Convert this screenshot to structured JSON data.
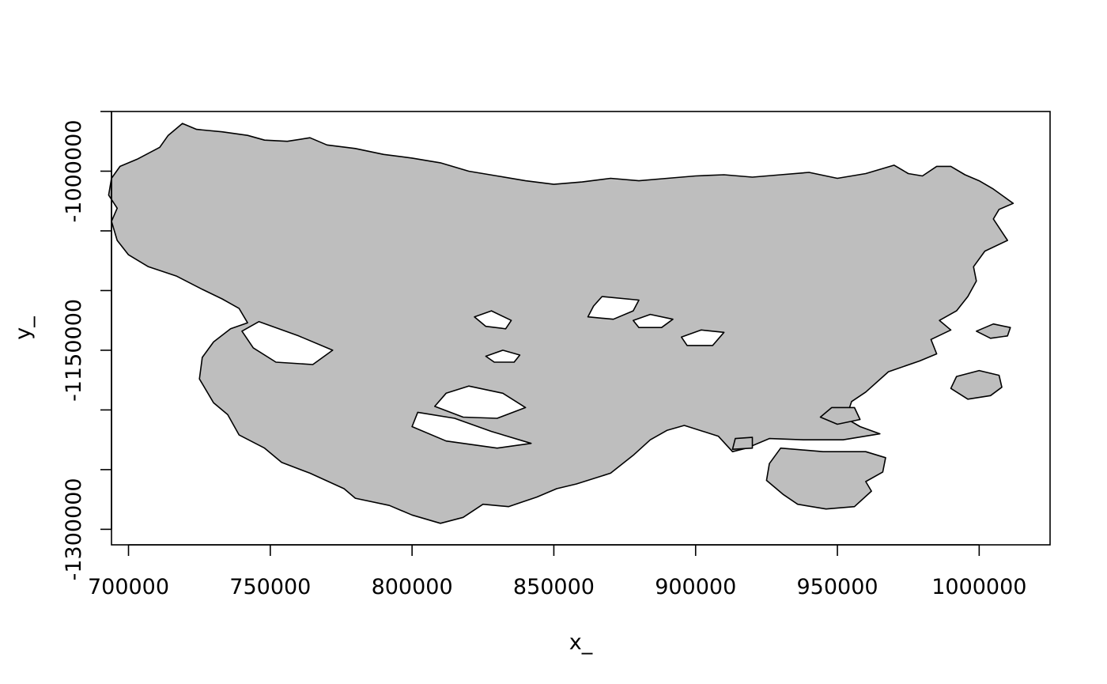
{
  "chart_data": {
    "type": "map",
    "title": "",
    "xlabel": "x_",
    "ylabel": "y_",
    "xlim": [
      694000,
      1025000
    ],
    "ylim": [
      -1313000,
      -950000
    ],
    "x_ticks": [
      {
        "value": 700000,
        "label": "700000"
      },
      {
        "value": 750000,
        "label": "750000"
      },
      {
        "value": 800000,
        "label": "800000"
      },
      {
        "value": 850000,
        "label": "850000"
      },
      {
        "value": 900000,
        "label": "900000"
      },
      {
        "value": 950000,
        "label": "950000"
      },
      {
        "value": 1000000,
        "label": "1000000"
      }
    ],
    "y_ticks": [
      {
        "value": -950000,
        "label": ""
      },
      {
        "value": -1000000,
        "label": "-1000000"
      },
      {
        "value": -1050000,
        "label": ""
      },
      {
        "value": -1100000,
        "label": ""
      },
      {
        "value": -1150000,
        "label": "-1150000"
      },
      {
        "value": -1200000,
        "label": ""
      },
      {
        "value": -1250000,
        "label": ""
      },
      {
        "value": -1300000,
        "label": "-1300000"
      }
    ],
    "fill_color": "#bebebe",
    "lake_color": "#ffffff",
    "border_color": "#000000",
    "polygons": [
      {
        "role": "mainland",
        "coords": [
          [
            719000,
            -960000
          ],
          [
            724000,
            -965000
          ],
          [
            733000,
            -967000
          ],
          [
            742000,
            -970000
          ],
          [
            748000,
            -974000
          ],
          [
            756000,
            -975000
          ],
          [
            764000,
            -972000
          ],
          [
            770000,
            -978000
          ],
          [
            780000,
            -981000
          ],
          [
            790000,
            -986000
          ],
          [
            800000,
            -989000
          ],
          [
            810000,
            -993000
          ],
          [
            820000,
            -1000000
          ],
          [
            830000,
            -1004000
          ],
          [
            840000,
            -1008000
          ],
          [
            850000,
            -1011000
          ],
          [
            860000,
            -1009000
          ],
          [
            870000,
            -1006000
          ],
          [
            880000,
            -1008000
          ],
          [
            890000,
            -1006000
          ],
          [
            900000,
            -1004000
          ],
          [
            910000,
            -1003000
          ],
          [
            920000,
            -1005000
          ],
          [
            930000,
            -1003000
          ],
          [
            940000,
            -1001000
          ],
          [
            950000,
            -1006000
          ],
          [
            960000,
            -1002000
          ],
          [
            970000,
            -995000
          ],
          [
            975000,
            -1002000
          ],
          [
            980000,
            -1004000
          ],
          [
            985000,
            -996000
          ],
          [
            990000,
            -996000
          ],
          [
            995000,
            -1003000
          ],
          [
            1000000,
            -1008000
          ],
          [
            1005000,
            -1015000
          ],
          [
            1012000,
            -1027000
          ],
          [
            1007000,
            -1032000
          ],
          [
            1005000,
            -1040000
          ],
          [
            1010000,
            -1058000
          ],
          [
            1002000,
            -1067000
          ],
          [
            998000,
            -1080000
          ],
          [
            999000,
            -1092000
          ],
          [
            996000,
            -1105000
          ],
          [
            992000,
            -1117000
          ],
          [
            986000,
            -1125000
          ],
          [
            990000,
            -1133000
          ],
          [
            983000,
            -1141000
          ],
          [
            985000,
            -1153000
          ],
          [
            979000,
            -1159000
          ],
          [
            968000,
            -1168000
          ],
          [
            960000,
            -1185000
          ],
          [
            955000,
            -1193000
          ],
          [
            953000,
            -1207000
          ],
          [
            958000,
            -1214000
          ],
          [
            965000,
            -1220000
          ],
          [
            952000,
            -1225000
          ],
          [
            938000,
            -1225000
          ],
          [
            926000,
            -1224000
          ],
          [
            918000,
            -1232000
          ],
          [
            913000,
            -1235000
          ],
          [
            908000,
            -1222000
          ],
          [
            896000,
            -1213000
          ],
          [
            890000,
            -1217000
          ],
          [
            884000,
            -1225000
          ],
          [
            878000,
            -1238000
          ],
          [
            870000,
            -1253000
          ],
          [
            858000,
            -1262000
          ],
          [
            851000,
            -1266000
          ],
          [
            844000,
            -1273000
          ],
          [
            834000,
            -1281000
          ],
          [
            825000,
            -1279000
          ],
          [
            818000,
            -1290000
          ],
          [
            810000,
            -1295000
          ],
          [
            800000,
            -1288000
          ],
          [
            792000,
            -1280000
          ],
          [
            780000,
            -1274000
          ],
          [
            776000,
            -1266000
          ],
          [
            764000,
            -1253000
          ],
          [
            754000,
            -1244000
          ],
          [
            748000,
            -1232000
          ],
          [
            739000,
            -1221000
          ],
          [
            735000,
            -1204000
          ],
          [
            730000,
            -1194000
          ],
          [
            725000,
            -1174000
          ],
          [
            726000,
            -1156000
          ],
          [
            730000,
            -1143000
          ],
          [
            736000,
            -1132000
          ],
          [
            742000,
            -1127000
          ],
          [
            739000,
            -1115000
          ],
          [
            733000,
            -1107000
          ],
          [
            726000,
            -1099000
          ],
          [
            717000,
            -1088000
          ],
          [
            707000,
            -1080000
          ],
          [
            700000,
            -1070000
          ],
          [
            696000,
            -1058000
          ],
          [
            694000,
            -1042000
          ],
          [
            696000,
            -1031000
          ],
          [
            693000,
            -1020000
          ],
          [
            694000,
            -1006000
          ],
          [
            697000,
            -996000
          ],
          [
            703000,
            -990000
          ],
          [
            711000,
            -980000
          ],
          [
            714000,
            -970000
          ]
        ]
      },
      {
        "role": "island",
        "coords": [
          [
            1000000,
            -1167000
          ],
          [
            1007000,
            -1171000
          ],
          [
            1008000,
            -1181000
          ],
          [
            1004000,
            -1188000
          ],
          [
            996000,
            -1191000
          ],
          [
            990000,
            -1182000
          ],
          [
            992000,
            -1172000
          ]
        ]
      },
      {
        "role": "island",
        "coords": [
          [
            1005000,
            -1128000
          ],
          [
            1011000,
            -1131000
          ],
          [
            1010000,
            -1138000
          ],
          [
            1004000,
            -1140000
          ],
          [
            999000,
            -1134000
          ]
        ]
      },
      {
        "role": "peninsula",
        "coords": [
          [
            930000,
            -1232000
          ],
          [
            945000,
            -1235000
          ],
          [
            960000,
            -1235000
          ],
          [
            967000,
            -1240000
          ],
          [
            966000,
            -1252000
          ],
          [
            960000,
            -1260000
          ],
          [
            962000,
            -1268000
          ],
          [
            956000,
            -1281000
          ],
          [
            946000,
            -1283000
          ],
          [
            936000,
            -1279000
          ],
          [
            931000,
            -1271000
          ],
          [
            925000,
            -1259000
          ],
          [
            926000,
            -1245000
          ]
        ]
      },
      {
        "role": "islet",
        "coords": [
          [
            948000,
            -1198000
          ],
          [
            956000,
            -1198000
          ],
          [
            958000,
            -1208000
          ],
          [
            950000,
            -1212000
          ],
          [
            944000,
            -1206000
          ]
        ]
      },
      {
        "role": "islet",
        "coords": [
          [
            914000,
            -1224000
          ],
          [
            920000,
            -1223000
          ],
          [
            920000,
            -1232000
          ],
          [
            913000,
            -1233000
          ]
        ]
      }
    ],
    "holes": [
      [
        [
          746000,
          -1126000
        ],
        [
          760000,
          -1138000
        ],
        [
          772000,
          -1150000
        ],
        [
          765000,
          -1162000
        ],
        [
          752000,
          -1160000
        ],
        [
          744000,
          -1148000
        ],
        [
          740000,
          -1134000
        ]
      ],
      [
        [
          828000,
          -1117000
        ],
        [
          835000,
          -1125000
        ],
        [
          833000,
          -1132000
        ],
        [
          826000,
          -1130000
        ],
        [
          822000,
          -1122000
        ]
      ],
      [
        [
          832000,
          -1150000
        ],
        [
          838000,
          -1154000
        ],
        [
          836000,
          -1160000
        ],
        [
          829000,
          -1160000
        ],
        [
          826000,
          -1155000
        ]
      ],
      [
        [
          867000,
          -1105000
        ],
        [
          880000,
          -1108000
        ],
        [
          878000,
          -1117000
        ],
        [
          871000,
          -1124000
        ],
        [
          862000,
          -1122000
        ],
        [
          864000,
          -1113000
        ]
      ],
      [
        [
          884000,
          -1120000
        ],
        [
          892000,
          -1124000
        ],
        [
          888000,
          -1131000
        ],
        [
          880000,
          -1131000
        ],
        [
          878000,
          -1125000
        ]
      ],
      [
        [
          902000,
          -1133000
        ],
        [
          910000,
          -1135000
        ],
        [
          906000,
          -1146000
        ],
        [
          897000,
          -1146000
        ],
        [
          895000,
          -1139000
        ]
      ],
      [
        [
          820000,
          -1180000
        ],
        [
          832000,
          -1186000
        ],
        [
          840000,
          -1198000
        ],
        [
          830000,
          -1207000
        ],
        [
          818000,
          -1206000
        ],
        [
          808000,
          -1197000
        ],
        [
          812000,
          -1186000
        ]
      ],
      [
        [
          802000,
          -1202000
        ],
        [
          815000,
          -1207000
        ],
        [
          828000,
          -1218000
        ],
        [
          842000,
          -1228000
        ],
        [
          830000,
          -1232000
        ],
        [
          812000,
          -1226000
        ],
        [
          800000,
          -1214000
        ]
      ]
    ]
  }
}
